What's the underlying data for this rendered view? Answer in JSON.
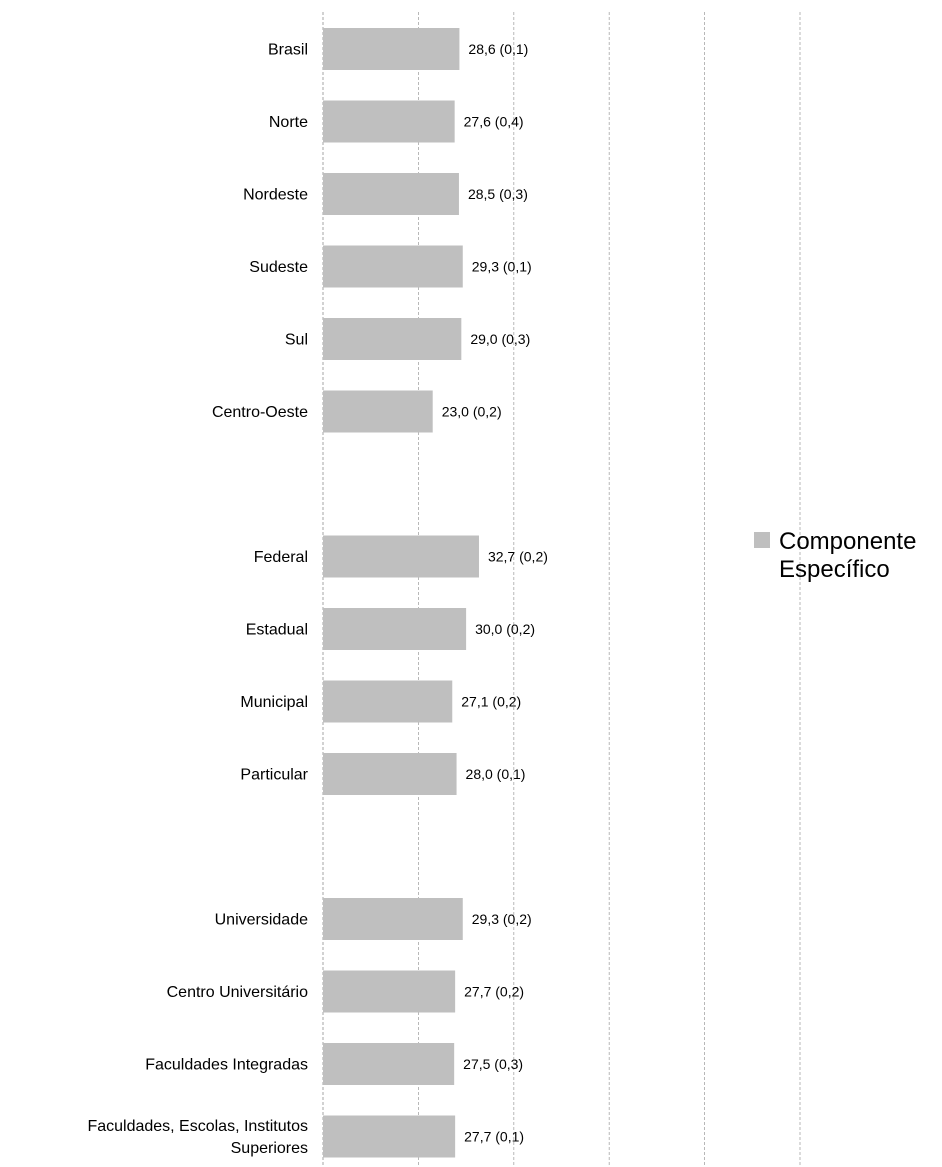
{
  "chart_data": {
    "type": "bar",
    "orientation": "horizontal",
    "categories": [
      "Brasil",
      "Norte",
      "Nordeste",
      "Sudeste",
      "Sul",
      "Centro-Oeste",
      "",
      "Federal",
      "Estadual",
      "Municipal",
      "Particular",
      "",
      "Universidade",
      "Centro Universitário",
      "Faculdades Integradas",
      "Faculdades, Escolas, Institutos Superiores"
    ],
    "category_lines": [
      [
        "Brasil"
      ],
      [
        "Norte"
      ],
      [
        "Nordeste"
      ],
      [
        "Sudeste"
      ],
      [
        "Sul"
      ],
      [
        "Centro-Oeste"
      ],
      [],
      [
        "Federal"
      ],
      [
        "Estadual"
      ],
      [
        "Municipal"
      ],
      [
        "Particular"
      ],
      [],
      [
        "Universidade"
      ],
      [
        "Centro Universitário"
      ],
      [
        "Faculdades Integradas"
      ],
      [
        "Faculdades, Escolas, Institutos",
        "Superiores"
      ]
    ],
    "series": [
      {
        "name": "Componente Específico",
        "values": [
          28.6,
          27.6,
          28.5,
          29.3,
          29.0,
          23.0,
          null,
          32.7,
          30.0,
          27.1,
          28.0,
          null,
          29.3,
          27.7,
          27.5,
          27.7
        ],
        "labels": [
          "28,6 (0,1)",
          "27,6 (0,4)",
          "28,5 (0,3)",
          "29,3 (0,1)",
          "29,0 (0,3)",
          "23,0 (0,2)",
          "",
          "32,7 (0,2)",
          "30,0 (0,2)",
          "27,1 (0,2)",
          "28,0 (0,1)",
          "",
          "29,3 (0,2)",
          "27,7 (0,2)",
          "27,5 (0,3)",
          "27,7 (0,1)"
        ]
      }
    ],
    "xlim": [
      0,
      100
    ],
    "grid": true,
    "legend": {
      "position": "right",
      "lines": [
        "Componente",
        "Específico"
      ]
    },
    "colors": {
      "bar": "#bfbfbf",
      "grid": "#a6a6a6",
      "legend_swatch": "#bfbfbf"
    },
    "title": "",
    "xlabel": "",
    "ylabel": ""
  }
}
